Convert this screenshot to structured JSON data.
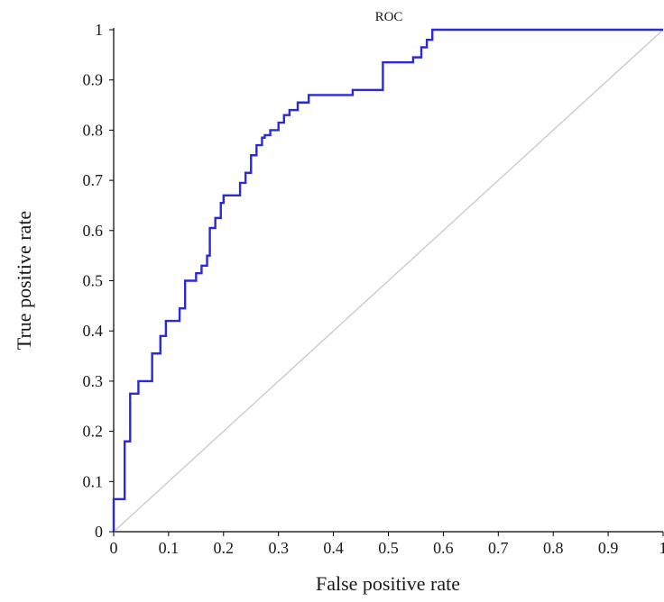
{
  "chart_data": {
    "type": "line",
    "title": "ROC",
    "xlabel": "False positive rate",
    "ylabel": "True positive rate",
    "xlim": [
      0,
      1
    ],
    "ylim": [
      0,
      1
    ],
    "x_ticks": [
      "0",
      "0.1",
      "0.2",
      "0.3",
      "0.4",
      "0.5",
      "0.6",
      "0.7",
      "0.8",
      "0.9",
      "1"
    ],
    "y_ticks": [
      "0",
      "0.1",
      "0.2",
      "0.3",
      "0.4",
      "0.5",
      "0.6",
      "0.7",
      "0.8",
      "0.9",
      "1"
    ],
    "grid": false,
    "series": [
      {
        "color": "#2a2ad8",
        "step": true,
        "x": [
          0,
          0,
          0.02,
          0.02,
          0.03,
          0.03,
          0.045,
          0.045,
          0.07,
          0.07,
          0.085,
          0.085,
          0.095,
          0.095,
          0.12,
          0.12,
          0.13,
          0.13,
          0.15,
          0.15,
          0.16,
          0.16,
          0.17,
          0.17,
          0.175,
          0.175,
          0.185,
          0.185,
          0.195,
          0.195,
          0.2,
          0.2,
          0.23,
          0.23,
          0.24,
          0.24,
          0.25,
          0.25,
          0.26,
          0.26,
          0.27,
          0.27,
          0.275,
          0.275,
          0.285,
          0.285,
          0.3,
          0.3,
          0.31,
          0.31,
          0.32,
          0.32,
          0.335,
          0.335,
          0.345,
          0.345,
          0.355,
          0.355,
          0.4,
          0.4,
          0.435,
          0.435,
          0.49,
          0.49,
          0.545,
          0.545,
          0.56,
          0.56,
          0.57,
          0.57,
          0.58,
          0.58,
          1
        ],
        "y": [
          0,
          0.065,
          0.065,
          0.18,
          0.18,
          0.275,
          0.275,
          0.3,
          0.3,
          0.355,
          0.355,
          0.39,
          0.39,
          0.42,
          0.42,
          0.445,
          0.445,
          0.5,
          0.5,
          0.515,
          0.515,
          0.53,
          0.53,
          0.55,
          0.55,
          0.605,
          0.605,
          0.625,
          0.625,
          0.655,
          0.655,
          0.67,
          0.67,
          0.695,
          0.695,
          0.715,
          0.715,
          0.75,
          0.75,
          0.77,
          0.77,
          0.785,
          0.785,
          0.79,
          0.79,
          0.8,
          0.8,
          0.815,
          0.815,
          0.83,
          0.83,
          0.84,
          0.84,
          0.855,
          0.855,
          0.855,
          0.855,
          0.87,
          0.87,
          0.87,
          0.87,
          0.88,
          0.88,
          0.935,
          0.935,
          0.945,
          0.945,
          0.965,
          0.965,
          0.98,
          0.98,
          1,
          1
        ]
      },
      {
        "color": "#c8c8c8",
        "x": [
          0,
          1
        ],
        "y": [
          0,
          1
        ]
      }
    ]
  }
}
